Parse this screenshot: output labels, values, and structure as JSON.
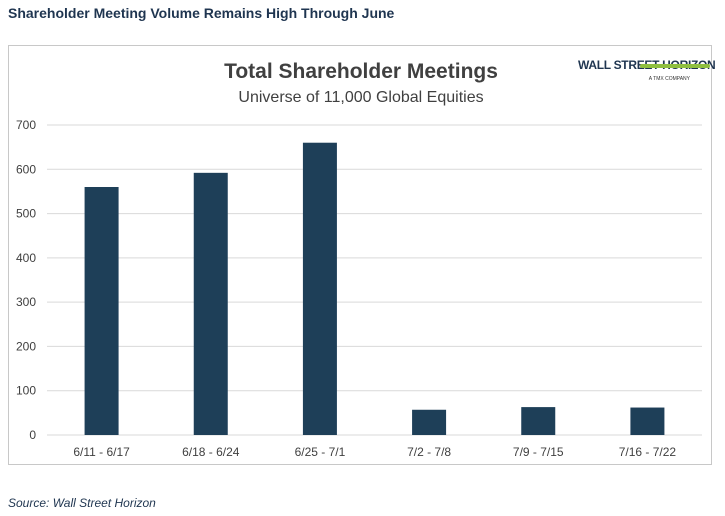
{
  "heading": "Shareholder Meeting Volume Remains High Through June",
  "source": "Source: Wall Street Horizon",
  "logo": {
    "text": "WALL STREET HORIZON",
    "subtext": "A TMX COMPANY",
    "colors": {
      "text": "#1f3550",
      "accent": "#8fbf3f"
    }
  },
  "chart_data": {
    "type": "bar",
    "title": "Total Shareholder Meetings",
    "subtitle": "Universe of 11,000 Global Equities",
    "xlabel": "",
    "ylabel": "",
    "categories": [
      "6/11 - 6/17",
      "6/18 - 6/24",
      "6/25 - 7/1",
      "7/2 - 7/8",
      "7/9 - 7/15",
      "7/16 - 7/22"
    ],
    "values": [
      560,
      592,
      660,
      57,
      63,
      62
    ],
    "ylim": [
      0,
      700
    ],
    "yticks": [
      "0",
      "100",
      "200",
      "300",
      "400",
      "500",
      "600",
      "700"
    ],
    "grid": true,
    "legend": "none",
    "colors": {
      "bar": "#1e3f58",
      "grid": "#d9d9d9",
      "text": "#404040"
    }
  }
}
